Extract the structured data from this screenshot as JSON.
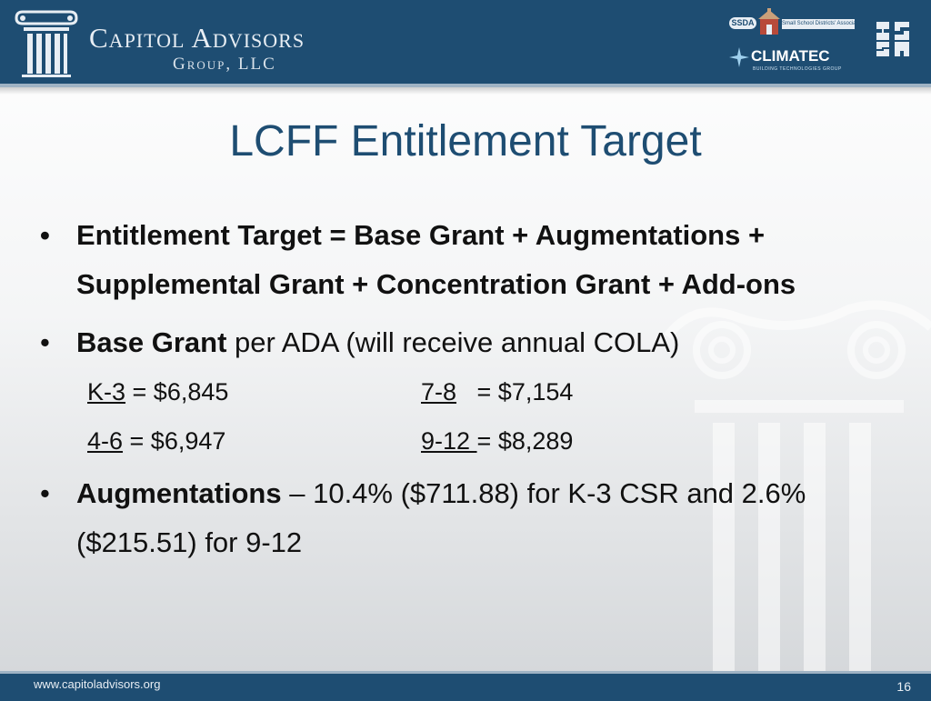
{
  "header": {
    "company_name": "Capitol Advisors",
    "company_sub": "Group, LLC",
    "ssda_label": "SSDA",
    "ssda_name": "Small School Districts' Association",
    "climatec_name": "CLIMATEC",
    "climatec_sub": "BUILDING TECHNOLOGIES GROUP",
    "brand_color": "#1e4d72"
  },
  "slide": {
    "title": "LCFF Entitlement Target",
    "bullet1": "Entitlement Target = Base Grant + Augmentations + Supplemental Grant + Concentration Grant + Add-ons",
    "bullet2_bold": "Base Grant",
    "bullet2_rest": " per ADA (will receive annual COLA)",
    "grants": [
      {
        "label": "K-3",
        "value": " = $6,845"
      },
      {
        "label": "7-8",
        "value": "   = $7,154"
      },
      {
        "label": "4-6",
        "value": " = $6,947"
      },
      {
        "label": "9-12 ",
        "value": "= $8,289"
      }
    ],
    "bullet3_bold": "Augmentations",
    "bullet3_rest": " – 10.4% ($711.88) for K-3 CSR and 2.6% ($215.51) for 9-12"
  },
  "footer": {
    "url": "www.capitoladvisors.org",
    "page_number": "16"
  }
}
